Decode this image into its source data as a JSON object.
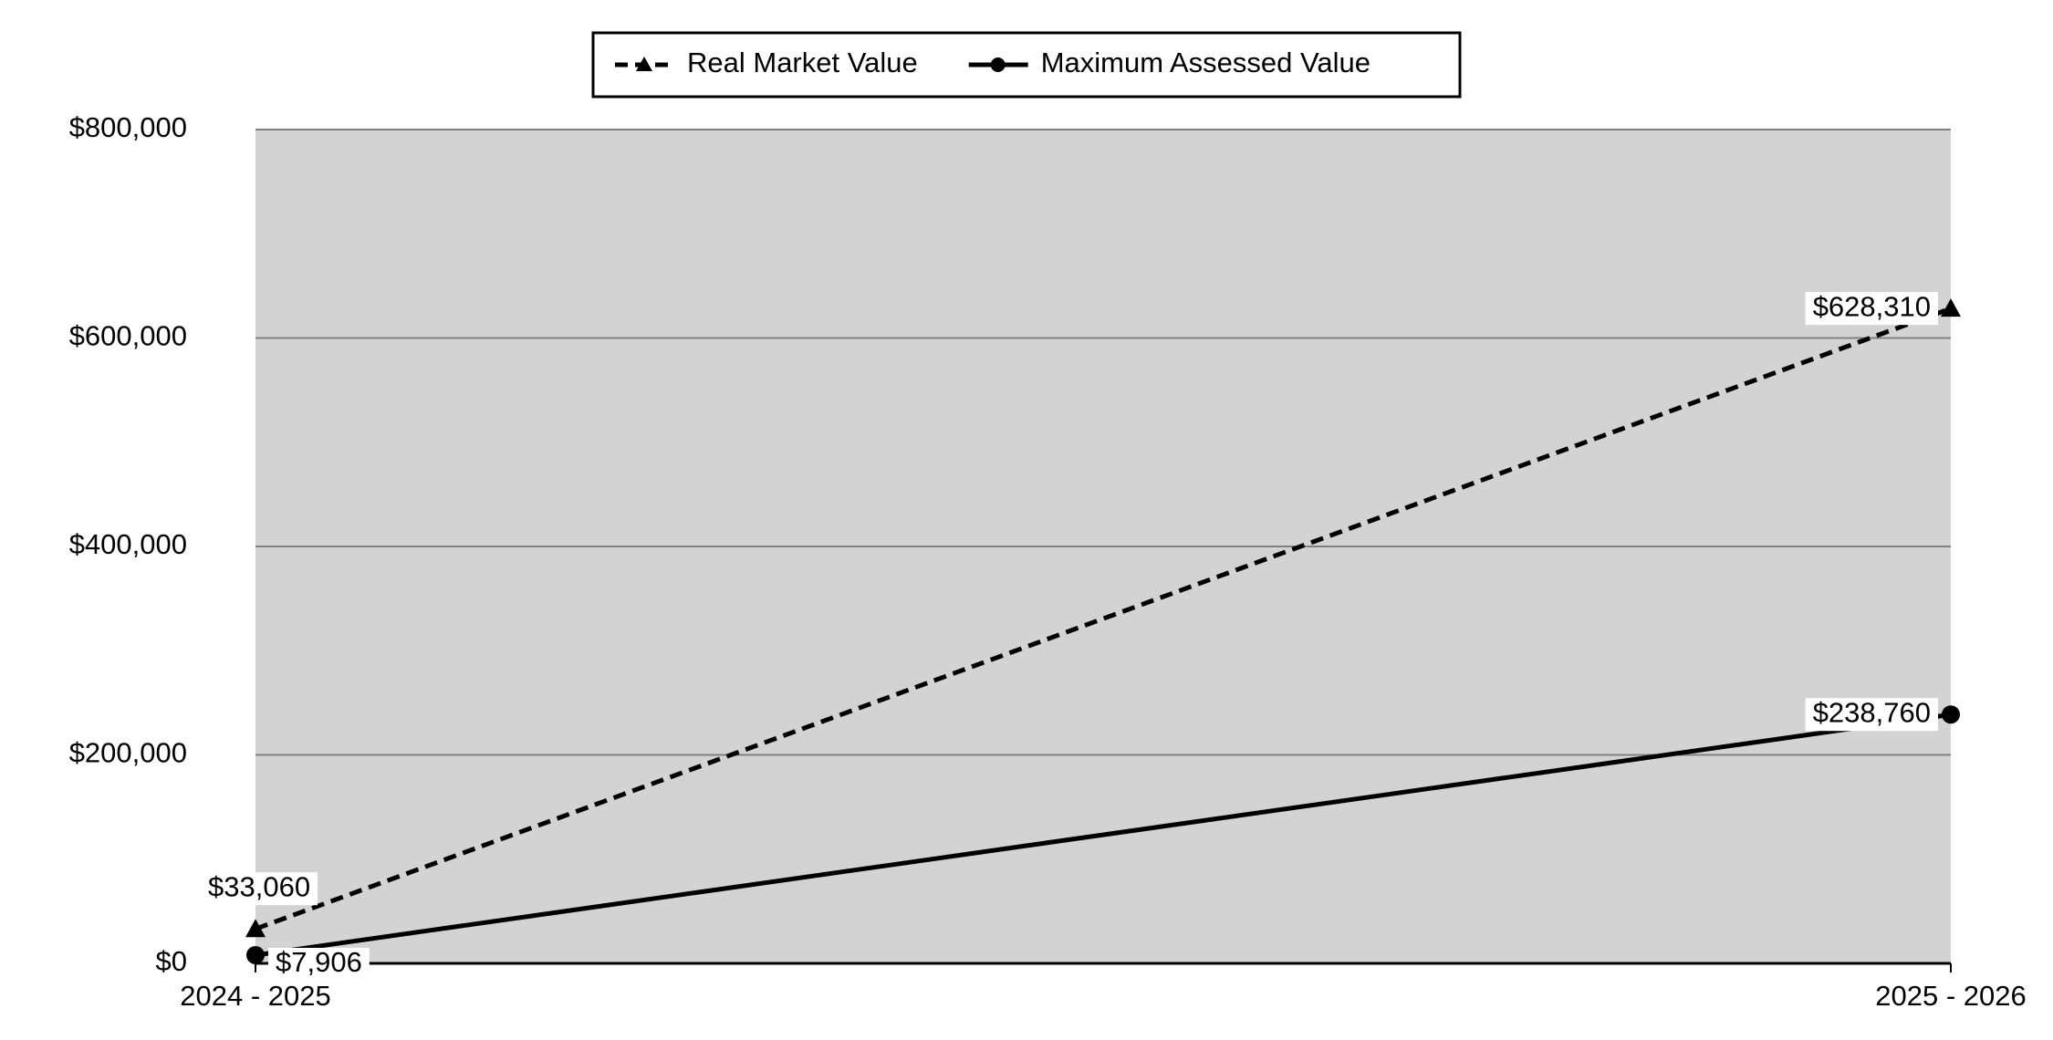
{
  "chart_data": {
    "type": "line",
    "categories": [
      "2024 - 2025",
      "2025 - 2026"
    ],
    "series": [
      {
        "name": "Real Market Value",
        "color": "#000000",
        "dash": true,
        "marker": "triangle",
        "values": [
          33060,
          628310
        ],
        "value_labels": [
          "$33,060",
          "$628,310"
        ]
      },
      {
        "name": "Maximum Assessed Value",
        "color": "#000000",
        "dash": false,
        "marker": "circle",
        "values": [
          7906,
          238760
        ],
        "value_labels": [
          "$7,906",
          "$238,760"
        ]
      }
    ],
    "ylim": [
      0,
      800000
    ],
    "yticks": [
      {
        "value": 0,
        "label": "$0"
      },
      {
        "value": 200000,
        "label": "$200,000"
      },
      {
        "value": 400000,
        "label": "$400,000"
      },
      {
        "value": 600000,
        "label": "$600,000"
      },
      {
        "value": 800000,
        "label": "$800,000"
      }
    ],
    "grid": true,
    "legend": "top",
    "plot_background": "#d3d3d3"
  }
}
